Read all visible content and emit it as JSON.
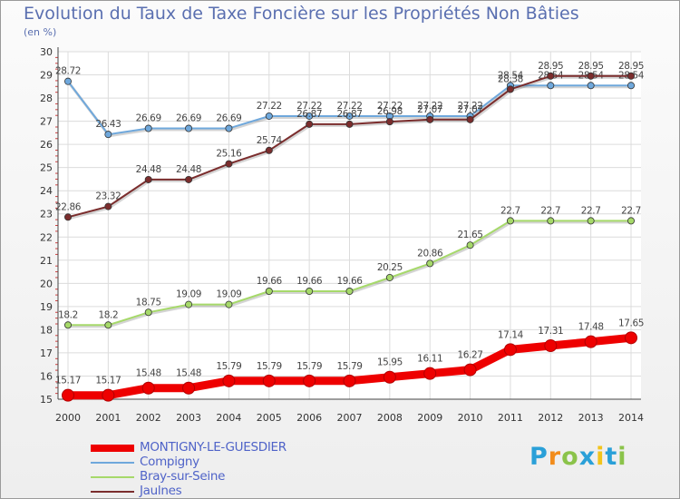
{
  "title": "Evolution du Taux de Taxe Foncière sur les Propriétés Non Bâties",
  "subtitle": "(en %)",
  "logo": [
    "P",
    "r",
    "o",
    "x",
    "i",
    "t",
    "i"
  ],
  "logo_colors": [
    "#2aa0d8",
    "#f28c1b",
    "#8bc34a",
    "#2aa0d8",
    "#f2c41b",
    "#2aa0d8",
    "#8bc34a"
  ],
  "chart_data": {
    "type": "line",
    "categories": [
      "2000",
      "2001",
      "2002",
      "2003",
      "2004",
      "2005",
      "2006",
      "2007",
      "2008",
      "2009",
      "2010",
      "2011",
      "2012",
      "2013",
      "2014"
    ],
    "ylim": [
      15,
      30
    ],
    "yticks": [
      "15",
      "16",
      "17",
      "18",
      "19",
      "20",
      "21",
      "22",
      "23",
      "24",
      "25",
      "26",
      "27",
      "28",
      "29",
      "30"
    ],
    "grid": true,
    "series": [
      {
        "name": "Compigny",
        "color": "#6fa8dc",
        "values": [
          28.72,
          26.43,
          26.69,
          26.69,
          26.69,
          27.22,
          27.22,
          27.22,
          27.22,
          27.22,
          27.22,
          28.54,
          28.54,
          28.54,
          28.54
        ],
        "labels": [
          "28.72",
          "26.43",
          "26.69",
          "26.69",
          "26.69",
          "27.22",
          "27.22",
          "27.22",
          "27.22",
          "27.22",
          "27.22",
          "28.54",
          "28.54",
          "28.54",
          "28.54"
        ]
      },
      {
        "name": "Bray-sur-Seine",
        "color": "#a6d96a",
        "values": [
          18.2,
          18.2,
          18.75,
          19.09,
          19.09,
          19.66,
          19.66,
          19.66,
          20.25,
          20.86,
          21.65,
          22.7,
          22.7,
          22.7,
          22.7
        ],
        "labels": [
          "18.2",
          "18.2",
          "18.75",
          "19.09",
          "19.09",
          "19.66",
          "19.66",
          "19.66",
          "20.25",
          "20.86",
          "21.65",
          "22.7",
          "22.7",
          "22.7",
          "22.7"
        ]
      },
      {
        "name": "Jaulnes",
        "color": "#7b2d2d",
        "values": [
          22.86,
          23.32,
          24.48,
          24.48,
          25.16,
          25.74,
          26.87,
          26.87,
          26.98,
          27.07,
          27.07,
          28.38,
          28.95,
          28.95,
          28.95
        ],
        "labels": [
          "22.86",
          "23.32",
          "24.48",
          "24.48",
          "25.16",
          "25.74",
          "26.87",
          "26.87",
          "26.98",
          "27.07",
          "27.07",
          "28.38",
          "28.95",
          "28.95",
          "28.95"
        ]
      },
      {
        "name": "MONTIGNY-LE-GUESDIER",
        "color": "#ee0000",
        "values": [
          15.17,
          15.17,
          15.48,
          15.48,
          15.79,
          15.79,
          15.79,
          15.79,
          15.95,
          16.11,
          16.27,
          17.14,
          17.31,
          17.48,
          17.65
        ],
        "labels": [
          "15.17",
          "15.17",
          "15.48",
          "15.48",
          "15.79",
          "15.79",
          "15.79",
          "15.79",
          "15.95",
          "16.11",
          "16.27",
          "17.14",
          "17.31",
          "17.48",
          "17.65"
        ]
      }
    ],
    "legend": [
      {
        "label": "MONTIGNY-LE-GUESDIER",
        "color": "#ee0000",
        "thick": true
      },
      {
        "label": "Compigny",
        "color": "#6fa8dc",
        "thick": false
      },
      {
        "label": "Bray-sur-Seine",
        "color": "#a6d96a",
        "thick": false
      },
      {
        "label": "Jaulnes",
        "color": "#7b2d2d",
        "thick": false
      }
    ]
  }
}
